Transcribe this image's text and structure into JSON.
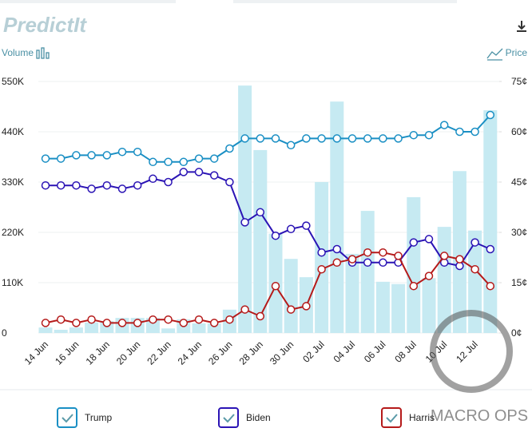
{
  "chart_data": {
    "type": "combo",
    "logo": "PredictIt",
    "y2label": "Price",
    "watermark": "MACRO OPS",
    "categories": [
      "14 Jun",
      null,
      "16 Jun",
      null,
      "18 Jun",
      null,
      "20 Jun",
      null,
      "22 Jun",
      null,
      "24 Jun",
      null,
      "26 Jun",
      null,
      "28 Jun",
      null,
      "30 Jun",
      null,
      "02 Jul",
      null,
      "04 Jul",
      null,
      "06 Jul",
      null,
      "08 Jul",
      null,
      "10 Jul",
      null,
      "12 Jul",
      null
    ],
    "ylim": [
      0,
      550000
    ],
    "yticks": [
      {
        "value": 0,
        "label": "0"
      },
      {
        "value": 110000,
        "label": "110K"
      },
      {
        "value": 220000,
        "label": "220K"
      },
      {
        "value": 330000,
        "label": "330K"
      },
      {
        "value": 440000,
        "label": "440K"
      },
      {
        "value": 550000,
        "label": "550K"
      }
    ],
    "y2lim": [
      0,
      75
    ],
    "y2ticks": [
      {
        "value": 0,
        "label": "0¢"
      },
      {
        "value": 15,
        "label": "15¢"
      },
      {
        "value": 30,
        "label": "30¢"
      },
      {
        "value": 45,
        "label": "45¢"
      },
      {
        "value": 60,
        "label": "60¢"
      },
      {
        "value": 75,
        "label": "75¢"
      }
    ],
    "series": [
      {
        "name": "Volume",
        "type": "bar",
        "color": "#c6eaf2",
        "values": [
          12000,
          7000,
          12000,
          23000,
          26000,
          33000,
          33000,
          33000,
          10000,
          30000,
          21000,
          21000,
          51000,
          541000,
          400000,
          217000,
          162000,
          122000,
          330000,
          506000,
          173000,
          267000,
          112000,
          107000,
          297000,
          120000,
          232000,
          354000,
          224000,
          487000
        ]
      },
      {
        "name": "Trump",
        "type": "line",
        "axis": "y2",
        "color": "#1a8fc4",
        "values": [
          52,
          52,
          53,
          53,
          53,
          54,
          54,
          51,
          51,
          51,
          52,
          52,
          55,
          58,
          58,
          58,
          56,
          58,
          58,
          58,
          58,
          58,
          58,
          58,
          59,
          59,
          62,
          60,
          60,
          65
        ]
      },
      {
        "name": "Biden",
        "type": "line",
        "axis": "y2",
        "color": "#2b14b5",
        "values": [
          44,
          44,
          44,
          43,
          44,
          43,
          44,
          46,
          45,
          48,
          48,
          47,
          45,
          33,
          36,
          29,
          31,
          32,
          24,
          25,
          21,
          21,
          21,
          21,
          27,
          28,
          21,
          20,
          27,
          25
        ]
      },
      {
        "name": "Harris",
        "type": "line",
        "axis": "y2",
        "color": "#b51a1a",
        "values": [
          3,
          4,
          3,
          4,
          3,
          3,
          3,
          4,
          4,
          3,
          4,
          3,
          4,
          7,
          5,
          14,
          7,
          8,
          19,
          21,
          22,
          24,
          24,
          23,
          14,
          17,
          23,
          22,
          19,
          14
        ]
      }
    ]
  }
}
